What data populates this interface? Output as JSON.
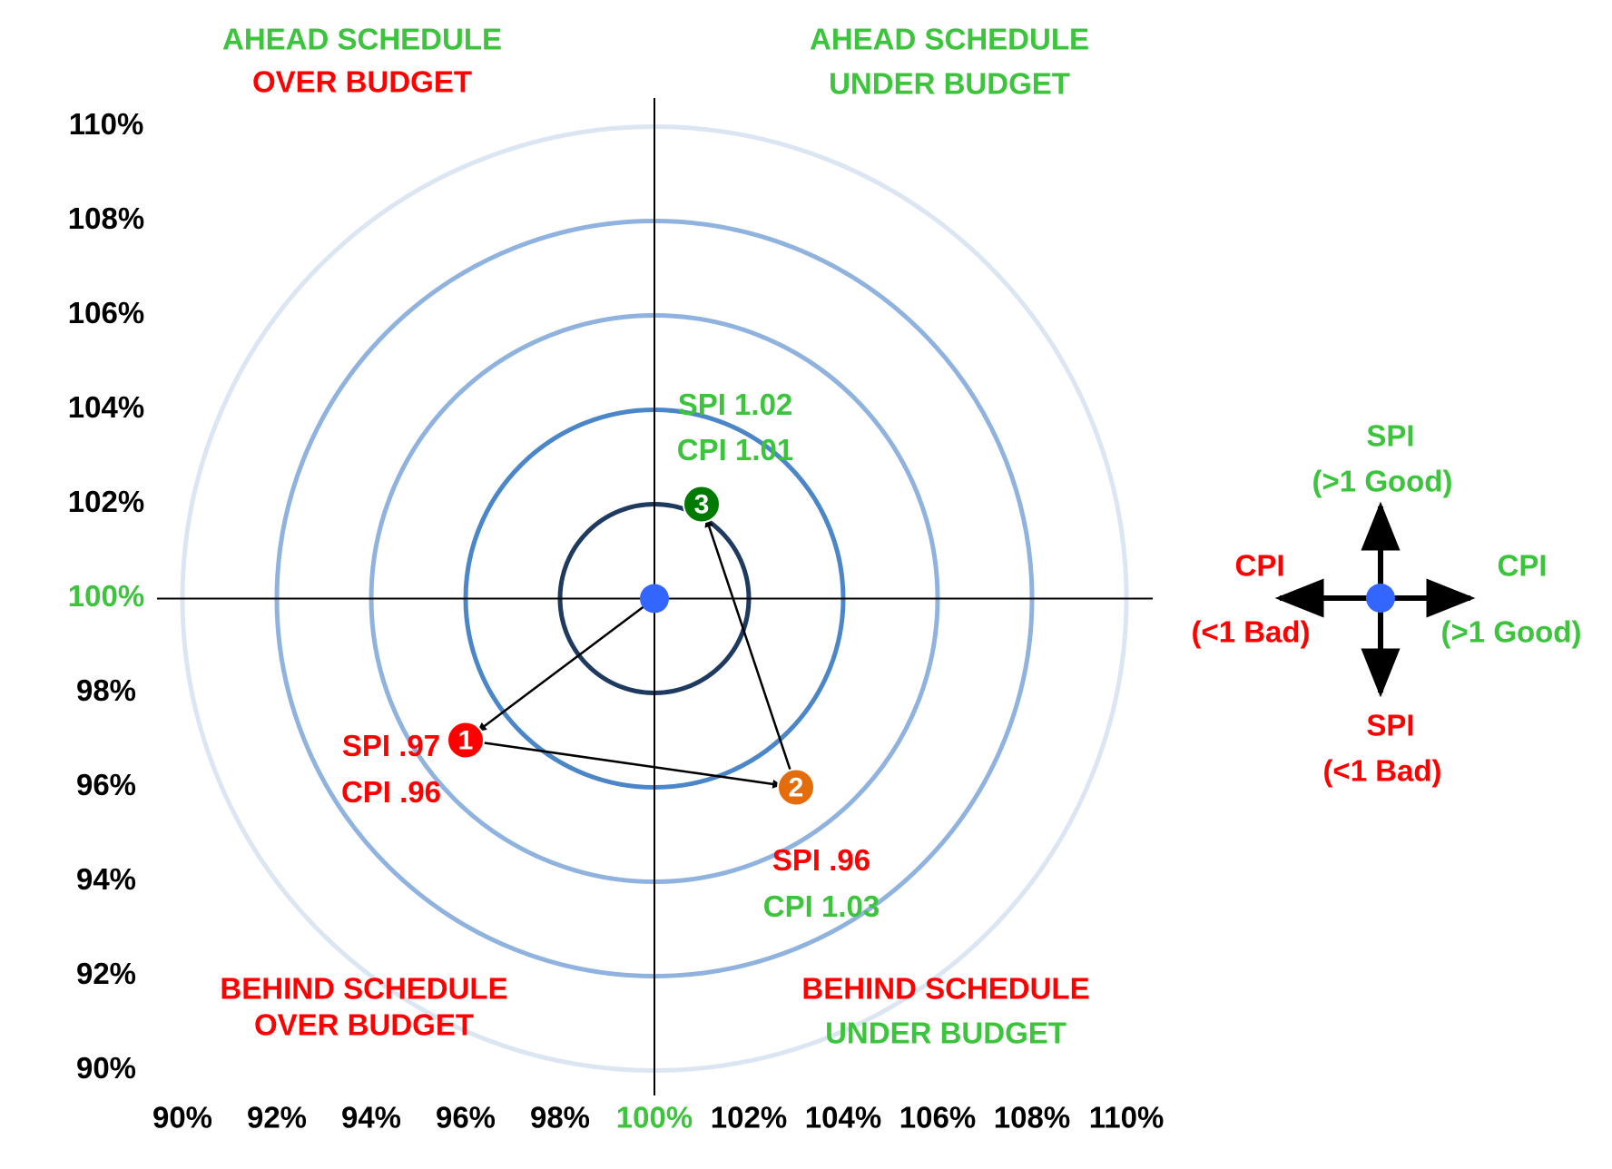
{
  "chart_data": {
    "type": "scatter",
    "xlim": [
      90,
      110
    ],
    "ylim": [
      90,
      110
    ],
    "xticks": [
      {
        "value": 90,
        "label": "90%"
      },
      {
        "value": 92,
        "label": "92%"
      },
      {
        "value": 94,
        "label": "94%"
      },
      {
        "value": 96,
        "label": "96%"
      },
      {
        "value": 98,
        "label": "98%"
      },
      {
        "value": 100,
        "label": "100%"
      },
      {
        "value": 102,
        "label": "102%"
      },
      {
        "value": 104,
        "label": "104%"
      },
      {
        "value": 106,
        "label": "106%"
      },
      {
        "value": 108,
        "label": "108%"
      },
      {
        "value": 110,
        "label": "110%"
      }
    ],
    "yticks": [
      {
        "value": 90,
        "label": "90%"
      },
      {
        "value": 92,
        "label": "92%"
      },
      {
        "value": 94,
        "label": "94%"
      },
      {
        "value": 96,
        "label": "96%"
      },
      {
        "value": 98,
        "label": "98%"
      },
      {
        "value": 100,
        "label": "100%"
      },
      {
        "value": 102,
        "label": "102%"
      },
      {
        "value": 104,
        "label": "104%"
      },
      {
        "value": 106,
        "label": "106%"
      },
      {
        "value": 108,
        "label": "108%"
      },
      {
        "value": 110,
        "label": "110%"
      }
    ],
    "highlight_tick": 100,
    "highlight_color": "#3cc43c",
    "rings": [
      2,
      4,
      6,
      8,
      10
    ],
    "ring_colors": [
      "#1f3a5f",
      "#4a86c8",
      "#8fb3de",
      "#8fb3de",
      "#dce6f2"
    ],
    "target": {
      "x": 100,
      "y": 100,
      "color": "#3366ff"
    },
    "x": [
      96,
      103,
      101
    ],
    "values": [
      97,
      96,
      102
    ],
    "point_labels": [
      "1",
      "2",
      "3"
    ],
    "colors": [
      "#ff0000",
      "#e46c0a",
      "#007a00"
    ],
    "annotations": [
      [
        {
          "text": "SPI .97",
          "color": "#ff0000"
        },
        {
          "text": "CPI .96",
          "color": "#ff0000"
        }
      ],
      [
        {
          "text": "SPI .96",
          "color": "#ff0000"
        },
        {
          "text": "CPI 1.03",
          "color": "#3cc43c"
        }
      ],
      [
        {
          "text": "SPI 1.02",
          "color": "#3cc43c"
        },
        {
          "text": "CPI 1.01",
          "color": "#3cc43c"
        }
      ]
    ],
    "quadrants": {
      "top_left": [
        {
          "text": "AHEAD SCHEDULE",
          "color": "#3cc43c"
        },
        {
          "text": "OVER BUDGET",
          "color": "#ff0000"
        }
      ],
      "top_right": [
        {
          "text": "AHEAD SCHEDULE",
          "color": "#3cc43c"
        },
        {
          "text": "UNDER BUDGET",
          "color": "#3cc43c"
        }
      ],
      "bottom_left": [
        {
          "text": "BEHIND SCHEDULE",
          "color": "#ff0000"
        },
        {
          "text": "OVER BUDGET",
          "color": "#ff0000"
        }
      ],
      "bottom_right": [
        {
          "text": "BEHIND SCHEDULE",
          "color": "#ff0000"
        },
        {
          "text": "UNDER BUDGET",
          "color": "#3cc43c"
        }
      ]
    },
    "legend": {
      "up": [
        {
          "text": "SPI",
          "color": "#3cc43c"
        },
        {
          "text": "(>1 Good)",
          "color": "#3cc43c"
        }
      ],
      "left": [
        {
          "text": "CPI",
          "color": "#ff0000"
        },
        {
          "text": "(<1 Bad)",
          "color": "#ff0000"
        }
      ],
      "right": [
        {
          "text": "CPI",
          "color": "#3cc43c"
        },
        {
          "text": "(>1 Good)",
          "color": "#3cc43c"
        }
      ],
      "down": [
        {
          "text": "SPI",
          "color": "#ff0000"
        },
        {
          "text": "(<1 Bad)",
          "color": "#ff0000"
        }
      ]
    }
  }
}
